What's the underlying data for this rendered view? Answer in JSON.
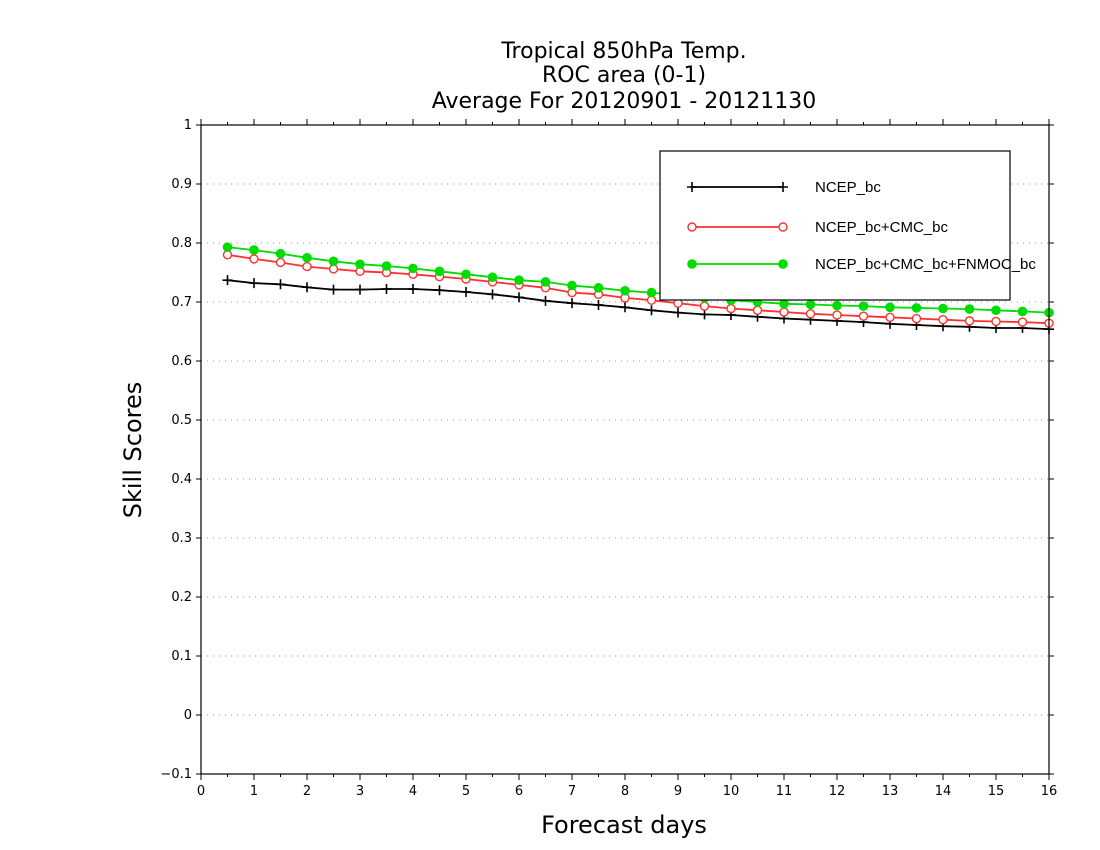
{
  "chart_data": {
    "type": "line",
    "title_lines": [
      "Tropical 850hPa Temp.",
      "ROC area (0-1)",
      "Average For 20120901 - 20121130"
    ],
    "xlabel": "Forecast days",
    "ylabel": "Skill Scores",
    "xlim": [
      0,
      16
    ],
    "ylim": [
      -0.1,
      1
    ],
    "xticks": [
      "0",
      "1",
      "2",
      "3",
      "4",
      "5",
      "6",
      "7",
      "8",
      "9",
      "10",
      "11",
      "12",
      "13",
      "14",
      "15",
      "16"
    ],
    "yticks": [
      "−0.1",
      "0",
      "0.1",
      "0.2",
      "0.3",
      "0.4",
      "0.5",
      "0.6",
      "0.7",
      "0.8",
      "0.9",
      "1"
    ],
    "grid": "dotted horizontal",
    "legend_position": "top-right",
    "x": [
      0.5,
      1,
      1.5,
      2,
      2.5,
      3,
      3.5,
      4,
      4.5,
      5,
      5.5,
      6,
      6.5,
      7,
      7.5,
      8,
      8.5,
      9,
      9.5,
      10,
      10.5,
      11,
      11.5,
      12,
      12.5,
      13,
      13.5,
      14,
      14.5,
      15,
      15.5,
      16
    ],
    "series": [
      {
        "name": "NCEP_bc",
        "color": "#000000",
        "marker": "plus",
        "values": [
          0.737,
          0.732,
          0.73,
          0.725,
          0.721,
          0.721,
          0.722,
          0.722,
          0.72,
          0.717,
          0.713,
          0.708,
          0.702,
          0.698,
          0.695,
          0.691,
          0.686,
          0.682,
          0.679,
          0.678,
          0.675,
          0.672,
          0.67,
          0.668,
          0.666,
          0.663,
          0.661,
          0.659,
          0.658,
          0.656,
          0.656,
          0.654
        ]
      },
      {
        "name": "NCEP_bc+CMC_bc",
        "color": "#ff3030",
        "marker": "open-circle",
        "values": [
          0.78,
          0.773,
          0.767,
          0.76,
          0.756,
          0.752,
          0.75,
          0.747,
          0.743,
          0.739,
          0.734,
          0.729,
          0.724,
          0.716,
          0.713,
          0.707,
          0.703,
          0.698,
          0.693,
          0.689,
          0.686,
          0.683,
          0.68,
          0.678,
          0.676,
          0.674,
          0.672,
          0.67,
          0.668,
          0.667,
          0.666,
          0.664
        ]
      },
      {
        "name": "NCEP_bc+CMC_bc+FNMOC_bc",
        "color": "#00dc00",
        "marker": "filled-circle",
        "values": [
          0.793,
          0.788,
          0.782,
          0.775,
          0.769,
          0.764,
          0.761,
          0.757,
          0.752,
          0.747,
          0.742,
          0.737,
          0.734,
          0.728,
          0.724,
          0.719,
          0.716,
          0.711,
          0.707,
          0.703,
          0.7,
          0.697,
          0.696,
          0.694,
          0.693,
          0.691,
          0.69,
          0.689,
          0.688,
          0.686,
          0.684,
          0.682
        ]
      }
    ]
  }
}
